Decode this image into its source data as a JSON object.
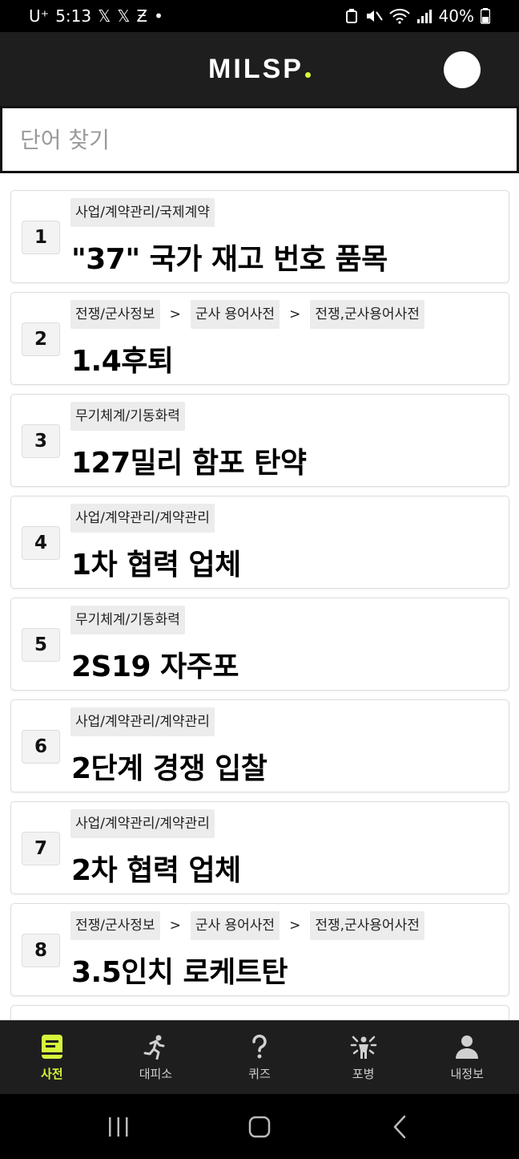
{
  "status_bar": {
    "carrier": "U⁺",
    "time": "5:13",
    "notif_icons": [
      "x-icon",
      "x-icon",
      "zeta-icon"
    ],
    "battery": "40%"
  },
  "header": {
    "logo_text": "MILSP",
    "accent_color": "#d6f53b"
  },
  "search": {
    "placeholder": "단어 찾기",
    "value": ""
  },
  "items": [
    {
      "num": "1",
      "tags": [
        "사업/계약관리/국제계약"
      ],
      "title": "\"37\" 국가 재고 번호 품목"
    },
    {
      "num": "2",
      "tags": [
        "전쟁/군사정보",
        "군사 용어사전",
        "전쟁,군사용어사전"
      ],
      "title": "1.4후퇴"
    },
    {
      "num": "3",
      "tags": [
        "무기체계/기동화력"
      ],
      "title": "127밀리 함포 탄약"
    },
    {
      "num": "4",
      "tags": [
        "사업/계약관리/계약관리"
      ],
      "title": "1차 협력 업체"
    },
    {
      "num": "5",
      "tags": [
        "무기체계/기동화력"
      ],
      "title": "2S19 자주포"
    },
    {
      "num": "6",
      "tags": [
        "사업/계약관리/계약관리"
      ],
      "title": "2단계 경쟁 입찰"
    },
    {
      "num": "7",
      "tags": [
        "사업/계약관리/계약관리"
      ],
      "title": "2차 협력 업체"
    },
    {
      "num": "8",
      "tags": [
        "전쟁/군사정보",
        "군사 용어사전",
        "전쟁,군사용어사전"
      ],
      "title": "3.5인치 로케트탄"
    }
  ],
  "tag_separator": ">",
  "bottom_nav": [
    {
      "label": "사전",
      "icon": "book-icon",
      "active": true
    },
    {
      "label": "대피소",
      "icon": "running-person-icon",
      "active": false
    },
    {
      "label": "퀴즈",
      "icon": "question-icon",
      "active": false
    },
    {
      "label": "포병",
      "icon": "soldier-icon",
      "active": false
    },
    {
      "label": "내정보",
      "icon": "person-icon",
      "active": false
    }
  ]
}
